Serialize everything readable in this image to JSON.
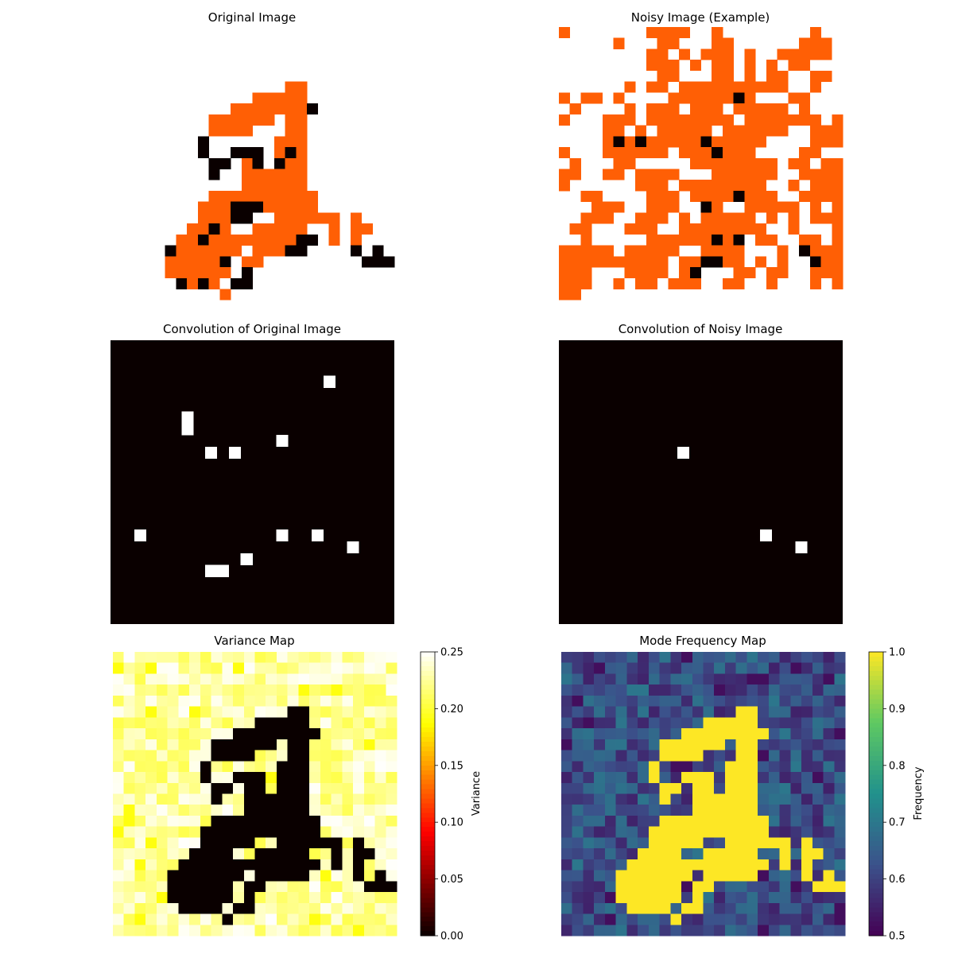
{
  "chart_data": [
    {
      "type": "heatmap",
      "title": "Original Image",
      "grid_size": [
        26,
        26
      ],
      "palette": {
        "0": "#ffffff",
        "1": "#ff5f05",
        "2": "#0a0000"
      },
      "rows": [
        "00000000000000000000000000",
        "00000000000000000000000000",
        "00000000000000000000000000",
        "00000000000000000000000000",
        "00000000000000000000000000",
        "00000000000000001100000000",
        "00000000000001111100000000",
        "00000000000111111120000000",
        "00000000011111101100000000",
        "00000000011110001100000000",
        "00000000200000011100000000",
        "00000000200222012100000000",
        "00000000022012021100000000",
        "00000000020011111100000000",
        "00000000000011111100000000",
        "00000000011111111110000000",
        "00000000111222111110000000",
        "00000000111220011111101000",
        "00000001121001111100101100",
        "00000011211111111220101000",
        "00000211111101112200002020",
        "00000111112011000000000222",
        "00000111111020000000000000",
        "00000021210220000000000000",
        "00000000001000000000000000",
        "00000000000000000000000000"
      ]
    },
    {
      "type": "heatmap",
      "title": "Noisy Image (Example)",
      "grid_size": [
        26,
        26
      ],
      "palette": {
        "0": "#ffffff",
        "1": "#ff5f05",
        "2": "#0a0000"
      },
      "rows": [
        "10000000111100100000000100",
        "00000100011000110000001110",
        "00000000110101110100111110",
        "00000000111010110101011000",
        "00000000011000110101100110",
        "00000010110111111111100100",
        "10110100001111112100011000",
        "01000010111011101111101000",
        "10001110111111110111111101",
        "00001101011111011111100111",
        "00001212111112111110000111",
        "10001111110111211100001100",
        "01000110000011111111011011",
        "11001101111000111111001111",
        "10000001110111111110010111",
        "00110000111011112111001111",
        "00011100111002100111110101",
        "00111001110101111101010111",
        "01100011100111111110010001",
        "00100000111111212011001101",
        "11111011111001111000102111",
        "11111111110112211010100211",
        "11100011110120001101100111",
        "11100101101110011001000101",
        "11000000000000000000000000",
        "00000000000000000000000000"
      ]
    },
    {
      "type": "heatmap",
      "title": "Convolution of Original Image",
      "grid_size": [
        24,
        24
      ],
      "hot_cells": [
        [
          3,
          18
        ],
        [
          6,
          6
        ],
        [
          7,
          6
        ],
        [
          8,
          14
        ],
        [
          9,
          8
        ],
        [
          9,
          10
        ],
        [
          16,
          2
        ],
        [
          16,
          14
        ],
        [
          16,
          17
        ],
        [
          17,
          20
        ],
        [
          18,
          11
        ],
        [
          19,
          8
        ],
        [
          19,
          9
        ]
      ]
    },
    {
      "type": "heatmap",
      "title": "Convolution of Noisy Image",
      "grid_size": [
        24,
        24
      ],
      "hot_cells": [
        [
          9,
          10
        ],
        [
          16,
          17
        ],
        [
          17,
          20
        ]
      ]
    },
    {
      "type": "heatmap",
      "title": "Variance Map",
      "grid_size": [
        26,
        26
      ],
      "colorbar": {
        "label": "Variance",
        "min": 0.0,
        "max": 0.25,
        "ticks": [
          "0.00",
          "0.05",
          "0.10",
          "0.15",
          "0.20",
          "0.25"
        ],
        "colormap": "hot"
      }
    },
    {
      "type": "heatmap",
      "title": "Mode Frequency Map",
      "grid_size": [
        26,
        26
      ],
      "colorbar": {
        "label": "Frequency",
        "min": 0.5,
        "max": 1.0,
        "ticks": [
          "0.5",
          "0.6",
          "0.7",
          "0.8",
          "0.9",
          "1.0"
        ],
        "colormap": "viridis"
      }
    }
  ]
}
